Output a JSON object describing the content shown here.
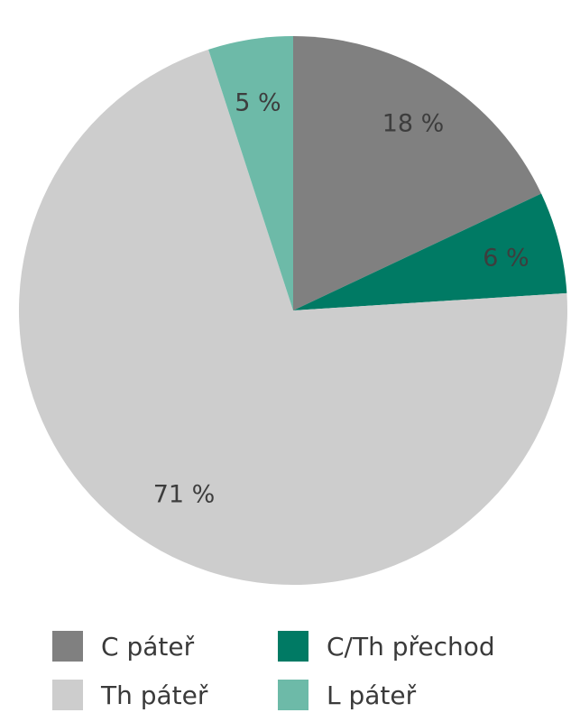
{
  "chart_data": {
    "type": "pie",
    "title": "",
    "start_angle_deg": 0,
    "direction": "clockwise",
    "slices": [
      {
        "name": "C páteř",
        "value": 18,
        "label": "18 %",
        "color": "#808080"
      },
      {
        "name": "C/Th přechod",
        "value": 6,
        "label": "6 %",
        "color": "#007a64"
      },
      {
        "name": "Th páteř",
        "value": 71,
        "label": "71 %",
        "color": "#cdcdcd"
      },
      {
        "name": "L páteř",
        "value": 5,
        "label": "5 %",
        "color": "#6dbaa8"
      }
    ],
    "legend": {
      "placement": "bottom",
      "items": [
        {
          "label": "C páteř",
          "color": "#808080"
        },
        {
          "label": "C/Th přechod",
          "color": "#007a64"
        },
        {
          "label": "Th páteř",
          "color": "#cdcdcd"
        },
        {
          "label": "L páteř",
          "color": "#6dbaa8"
        }
      ]
    }
  }
}
